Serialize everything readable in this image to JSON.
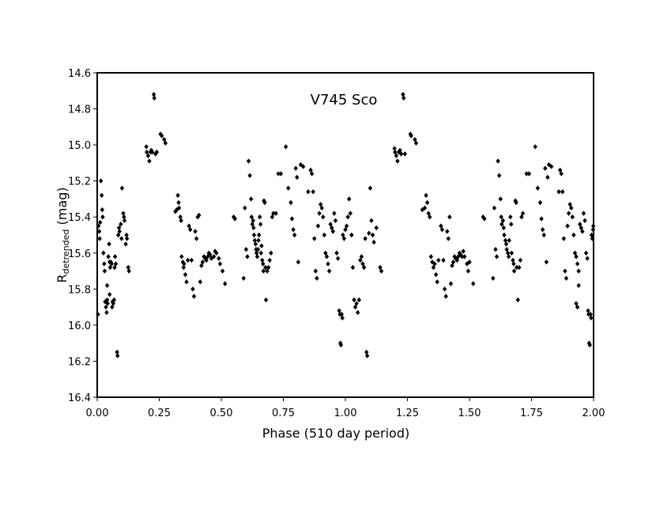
{
  "chart_data": {
    "type": "scatter",
    "title": "V745 Sco",
    "xlabel": "Phase (510 day period)",
    "ylabel_main": "R",
    "ylabel_sub": "detrended",
    "ylabel_unit": " (mag)",
    "xlim": [
      0,
      2
    ],
    "ylim": [
      14.6,
      16.4
    ],
    "y_inverted": true,
    "grid": false,
    "legend": "none",
    "marker": "diamond",
    "marker_color": "#000000",
    "x_ticks": [
      0.0,
      0.25,
      0.5,
      0.75,
      1.0,
      1.25,
      1.5,
      1.75,
      2.0
    ],
    "x_tick_labels": [
      "0.00",
      "0.25",
      "0.50",
      "0.75",
      "1.00",
      "1.25",
      "1.50",
      "1.75",
      "2.00"
    ],
    "y_ticks": [
      14.6,
      14.8,
      15.0,
      15.2,
      15.4,
      15.6,
      15.8,
      16.0,
      16.2,
      16.4
    ],
    "y_tick_labels": [
      "14.6",
      "14.8",
      "15.0",
      "15.2",
      "15.4",
      "15.6",
      "15.8",
      "16.0",
      "16.2",
      "16.4"
    ],
    "points": [
      [
        0.005,
        15.45
      ],
      [
        0.008,
        15.48
      ],
      [
        0.01,
        15.52
      ],
      [
        0.012,
        15.43
      ],
      [
        0.003,
        15.94
      ],
      [
        0.015,
        15.2
      ],
      [
        0.018,
        15.28
      ],
      [
        0.02,
        15.36
      ],
      [
        0.022,
        15.4
      ],
      [
        0.025,
        15.6
      ],
      [
        0.028,
        15.66
      ],
      [
        0.03,
        15.7
      ],
      [
        0.032,
        15.87
      ],
      [
        0.035,
        15.9
      ],
      [
        0.038,
        15.93
      ],
      [
        0.04,
        15.86
      ],
      [
        0.042,
        15.88
      ],
      [
        0.045,
        15.62
      ],
      [
        0.048,
        15.55
      ],
      [
        0.05,
        15.65
      ],
      [
        0.052,
        15.68
      ],
      [
        0.055,
        15.65
      ],
      [
        0.058,
        15.66
      ],
      [
        0.06,
        15.9
      ],
      [
        0.062,
        15.87
      ],
      [
        0.065,
        15.88
      ],
      [
        0.068,
        15.86
      ],
      [
        0.07,
        15.68
      ],
      [
        0.072,
        15.62
      ],
      [
        0.075,
        15.66
      ],
      [
        0.08,
        16.15
      ],
      [
        0.082,
        16.17
      ],
      [
        0.085,
        15.5
      ],
      [
        0.088,
        15.46
      ],
      [
        0.09,
        15.48
      ],
      [
        0.095,
        15.44
      ],
      [
        0.098,
        15.52
      ],
      [
        0.1,
        15.24
      ],
      [
        0.105,
        15.38
      ],
      [
        0.108,
        15.4
      ],
      [
        0.11,
        15.42
      ],
      [
        0.115,
        15.55
      ],
      [
        0.118,
        15.5
      ],
      [
        0.12,
        15.52
      ],
      [
        0.125,
        15.68
      ],
      [
        0.128,
        15.7
      ],
      [
        0.04,
        15.78
      ],
      [
        0.05,
        15.83
      ],
      [
        0.198,
        15.01
      ],
      [
        0.2,
        15.04
      ],
      [
        0.205,
        15.06
      ],
      [
        0.21,
        15.09
      ],
      [
        0.215,
        15.04
      ],
      [
        0.218,
        15.03
      ],
      [
        0.222,
        15.04
      ],
      [
        0.228,
        14.72
      ],
      [
        0.23,
        14.74
      ],
      [
        0.235,
        15.05
      ],
      [
        0.24,
        15.04
      ],
      [
        0.255,
        14.94
      ],
      [
        0.26,
        14.95
      ],
      [
        0.27,
        14.97
      ],
      [
        0.275,
        14.99
      ],
      [
        0.315,
        15.37
      ],
      [
        0.32,
        15.36
      ],
      [
        0.325,
        15.28
      ],
      [
        0.328,
        15.32
      ],
      [
        0.33,
        15.35
      ],
      [
        0.335,
        15.4
      ],
      [
        0.338,
        15.42
      ],
      [
        0.34,
        15.62
      ],
      [
        0.345,
        15.65
      ],
      [
        0.348,
        15.68
      ],
      [
        0.35,
        15.66
      ],
      [
        0.355,
        15.72
      ],
      [
        0.36,
        15.76
      ],
      [
        0.365,
        15.64
      ],
      [
        0.37,
        15.45
      ],
      [
        0.375,
        15.47
      ],
      [
        0.38,
        15.64
      ],
      [
        0.385,
        15.8
      ],
      [
        0.39,
        15.84
      ],
      [
        0.395,
        15.48
      ],
      [
        0.4,
        15.52
      ],
      [
        0.405,
        15.4
      ],
      [
        0.41,
        15.39
      ],
      [
        0.415,
        15.76
      ],
      [
        0.42,
        15.67
      ],
      [
        0.425,
        15.65
      ],
      [
        0.43,
        15.62
      ],
      [
        0.435,
        15.63
      ],
      [
        0.44,
        15.64
      ],
      [
        0.445,
        15.62
      ],
      [
        0.45,
        15.6
      ],
      [
        0.455,
        15.61
      ],
      [
        0.46,
        15.63
      ],
      [
        0.47,
        15.62
      ],
      [
        0.475,
        15.59
      ],
      [
        0.48,
        15.6
      ],
      [
        0.49,
        15.63
      ],
      [
        0.495,
        15.66
      ],
      [
        0.505,
        15.7
      ],
      [
        0.515,
        15.77
      ],
      [
        0.55,
        15.4
      ],
      [
        0.555,
        15.41
      ],
      [
        0.59,
        15.74
      ],
      [
        0.595,
        15.35
      ],
      [
        0.6,
        15.58
      ],
      [
        0.605,
        15.62
      ],
      [
        0.61,
        15.09
      ],
      [
        0.615,
        15.17
      ],
      [
        0.62,
        15.3
      ],
      [
        0.622,
        15.4
      ],
      [
        0.625,
        15.44
      ],
      [
        0.628,
        15.42
      ],
      [
        0.63,
        15.46
      ],
      [
        0.632,
        15.5
      ],
      [
        0.635,
        15.53
      ],
      [
        0.638,
        15.55
      ],
      [
        0.64,
        15.58
      ],
      [
        0.642,
        15.6
      ],
      [
        0.645,
        15.62
      ],
      [
        0.648,
        15.58
      ],
      [
        0.65,
        15.53
      ],
      [
        0.652,
        15.5
      ],
      [
        0.655,
        15.4
      ],
      [
        0.658,
        15.44
      ],
      [
        0.66,
        15.6
      ],
      [
        0.662,
        15.56
      ],
      [
        0.665,
        15.64
      ],
      [
        0.668,
        15.66
      ],
      [
        0.67,
        15.7
      ],
      [
        0.672,
        15.31
      ],
      [
        0.675,
        15.32
      ],
      [
        0.678,
        15.68
      ],
      [
        0.68,
        15.86
      ],
      [
        0.685,
        15.7
      ],
      [
        0.69,
        15.68
      ],
      [
        0.695,
        15.64
      ],
      [
        0.7,
        15.6
      ],
      [
        0.705,
        15.4
      ],
      [
        0.71,
        15.38
      ],
      [
        0.72,
        15.38
      ],
      [
        0.73,
        15.16
      ],
      [
        0.74,
        15.16
      ],
      [
        0.76,
        15.01
      ],
      [
        0.77,
        15.24
      ],
      [
        0.78,
        15.32
      ],
      [
        0.785,
        15.41
      ],
      [
        0.79,
        15.47
      ],
      [
        0.795,
        15.5
      ],
      [
        0.8,
        15.13
      ],
      [
        0.805,
        15.18
      ],
      [
        0.81,
        15.65
      ],
      [
        0.82,
        15.11
      ],
      [
        0.83,
        15.12
      ],
      [
        0.85,
        15.26
      ],
      [
        0.86,
        15.14
      ],
      [
        0.865,
        15.16
      ],
      [
        0.87,
        15.26
      ],
      [
        0.875,
        15.52
      ],
      [
        0.88,
        15.7
      ],
      [
        0.885,
        15.74
      ],
      [
        0.89,
        15.45
      ],
      [
        0.895,
        15.38
      ],
      [
        0.9,
        15.33
      ],
      [
        0.905,
        15.35
      ],
      [
        0.91,
        15.4
      ],
      [
        0.915,
        15.5
      ],
      [
        0.92,
        15.6
      ],
      [
        0.925,
        15.62
      ],
      [
        0.93,
        15.66
      ],
      [
        0.935,
        15.7
      ],
      [
        0.94,
        15.44
      ],
      [
        0.945,
        15.46
      ],
      [
        0.95,
        15.48
      ],
      [
        0.955,
        15.38
      ],
      [
        0.96,
        15.42
      ],
      [
        0.965,
        15.6
      ],
      [
        0.97,
        15.63
      ],
      [
        0.975,
        15.92
      ],
      [
        0.978,
        15.94
      ],
      [
        0.98,
        16.1
      ],
      [
        0.982,
        16.11
      ],
      [
        0.985,
        15.94
      ],
      [
        0.988,
        15.96
      ],
      [
        0.99,
        15.5
      ],
      [
        0.995,
        15.52
      ],
      [
        1.0,
        15.47
      ],
      [
        1.005,
        15.45
      ],
      [
        1.01,
        15.4
      ],
      [
        1.015,
        15.3
      ],
      [
        1.02,
        15.38
      ],
      [
        1.025,
        15.5
      ],
      [
        1.03,
        15.68
      ],
      [
        1.035,
        15.86
      ],
      [
        1.04,
        15.9
      ],
      [
        1.045,
        15.88
      ],
      [
        1.05,
        15.93
      ],
      [
        1.055,
        15.86
      ],
      [
        1.06,
        15.64
      ],
      [
        1.065,
        15.62
      ],
      [
        1.07,
        15.66
      ],
      [
        1.075,
        15.68
      ],
      [
        1.08,
        15.52
      ],
      [
        1.085,
        16.15
      ],
      [
        1.088,
        16.17
      ],
      [
        1.095,
        15.49
      ],
      [
        1.1,
        15.24
      ],
      [
        1.105,
        15.42
      ],
      [
        1.11,
        15.5
      ],
      [
        1.115,
        15.54
      ],
      [
        1.125,
        15.46
      ],
      [
        1.14,
        15.68
      ],
      [
        1.145,
        15.7
      ],
      [
        1.198,
        15.02
      ],
      [
        1.2,
        15.04
      ],
      [
        1.205,
        15.06
      ],
      [
        1.21,
        15.09
      ],
      [
        1.215,
        15.04
      ],
      [
        1.22,
        15.03
      ],
      [
        1.225,
        15.05
      ],
      [
        1.232,
        14.72
      ],
      [
        1.235,
        14.74
      ],
      [
        1.24,
        15.05
      ],
      [
        1.262,
        14.94
      ],
      [
        1.265,
        14.95
      ],
      [
        1.28,
        14.97
      ],
      [
        1.285,
        14.99
      ],
      [
        1.31,
        15.36
      ],
      [
        1.32,
        15.35
      ],
      [
        1.325,
        15.28
      ],
      [
        1.33,
        15.32
      ],
      [
        1.335,
        15.38
      ],
      [
        1.34,
        15.4
      ],
      [
        1.345,
        15.62
      ],
      [
        1.35,
        15.65
      ],
      [
        1.355,
        15.68
      ],
      [
        1.36,
        15.66
      ],
      [
        1.365,
        15.72
      ],
      [
        1.37,
        15.76
      ],
      [
        1.375,
        15.64
      ],
      [
        1.385,
        15.45
      ],
      [
        1.39,
        15.47
      ],
      [
        1.395,
        15.64
      ],
      [
        1.4,
        15.8
      ],
      [
        1.405,
        15.84
      ],
      [
        1.41,
        15.48
      ],
      [
        1.415,
        15.52
      ],
      [
        1.42,
        15.4
      ],
      [
        1.425,
        15.77
      ],
      [
        1.43,
        15.67
      ],
      [
        1.435,
        15.65
      ],
      [
        1.44,
        15.62
      ],
      [
        1.445,
        15.63
      ],
      [
        1.45,
        15.64
      ],
      [
        1.455,
        15.62
      ],
      [
        1.46,
        15.6
      ],
      [
        1.465,
        15.61
      ],
      [
        1.47,
        15.62
      ],
      [
        1.475,
        15.59
      ],
      [
        1.48,
        15.62
      ],
      [
        1.49,
        15.66
      ],
      [
        1.495,
        15.7
      ],
      [
        1.5,
        15.65
      ],
      [
        1.515,
        15.77
      ],
      [
        1.555,
        15.4
      ],
      [
        1.56,
        15.41
      ],
      [
        1.595,
        15.74
      ],
      [
        1.6,
        15.35
      ],
      [
        1.605,
        15.58
      ],
      [
        1.61,
        15.62
      ],
      [
        1.615,
        15.09
      ],
      [
        1.62,
        15.17
      ],
      [
        1.625,
        15.3
      ],
      [
        1.628,
        15.4
      ],
      [
        1.63,
        15.44
      ],
      [
        1.635,
        15.42
      ],
      [
        1.638,
        15.46
      ],
      [
        1.64,
        15.5
      ],
      [
        1.645,
        15.53
      ],
      [
        1.648,
        15.55
      ],
      [
        1.65,
        15.58
      ],
      [
        1.655,
        15.6
      ],
      [
        1.658,
        15.62
      ],
      [
        1.66,
        15.53
      ],
      [
        1.665,
        15.4
      ],
      [
        1.668,
        15.44
      ],
      [
        1.67,
        15.6
      ],
      [
        1.675,
        15.64
      ],
      [
        1.678,
        15.66
      ],
      [
        1.68,
        15.7
      ],
      [
        1.685,
        15.31
      ],
      [
        1.688,
        15.32
      ],
      [
        1.69,
        15.68
      ],
      [
        1.695,
        15.86
      ],
      [
        1.7,
        15.68
      ],
      [
        1.705,
        15.64
      ],
      [
        1.71,
        15.4
      ],
      [
        1.715,
        15.38
      ],
      [
        1.73,
        15.16
      ],
      [
        1.74,
        15.16
      ],
      [
        1.765,
        15.01
      ],
      [
        1.775,
        15.24
      ],
      [
        1.785,
        15.32
      ],
      [
        1.79,
        15.41
      ],
      [
        1.795,
        15.47
      ],
      [
        1.8,
        15.5
      ],
      [
        1.805,
        15.13
      ],
      [
        1.81,
        15.65
      ],
      [
        1.815,
        15.18
      ],
      [
        1.82,
        15.11
      ],
      [
        1.83,
        15.12
      ],
      [
        1.86,
        15.26
      ],
      [
        1.865,
        15.14
      ],
      [
        1.87,
        15.16
      ],
      [
        1.875,
        15.26
      ],
      [
        1.88,
        15.52
      ],
      [
        1.885,
        15.7
      ],
      [
        1.89,
        15.74
      ],
      [
        1.895,
        15.45
      ],
      [
        1.9,
        15.38
      ],
      [
        1.905,
        15.33
      ],
      [
        1.91,
        15.35
      ],
      [
        1.915,
        15.4
      ],
      [
        1.92,
        15.5
      ],
      [
        1.925,
        15.6
      ],
      [
        1.93,
        15.62
      ],
      [
        1.935,
        15.66
      ],
      [
        1.94,
        15.7
      ],
      [
        1.945,
        15.44
      ],
      [
        1.95,
        15.46
      ],
      [
        1.955,
        15.48
      ],
      [
        1.96,
        15.38
      ],
      [
        1.965,
        15.42
      ],
      [
        1.97,
        15.6
      ],
      [
        1.975,
        15.63
      ],
      [
        1.978,
        15.92
      ],
      [
        1.98,
        15.94
      ],
      [
        1.982,
        16.1
      ],
      [
        1.985,
        16.11
      ],
      [
        1.988,
        15.94
      ],
      [
        1.99,
        15.96
      ],
      [
        1.992,
        15.5
      ],
      [
        1.995,
        15.52
      ],
      [
        1.998,
        15.47
      ],
      [
        1.999,
        15.45
      ],
      [
        1.93,
        15.88
      ],
      [
        1.935,
        15.9
      ],
      [
        1.94,
        15.78
      ]
    ]
  }
}
